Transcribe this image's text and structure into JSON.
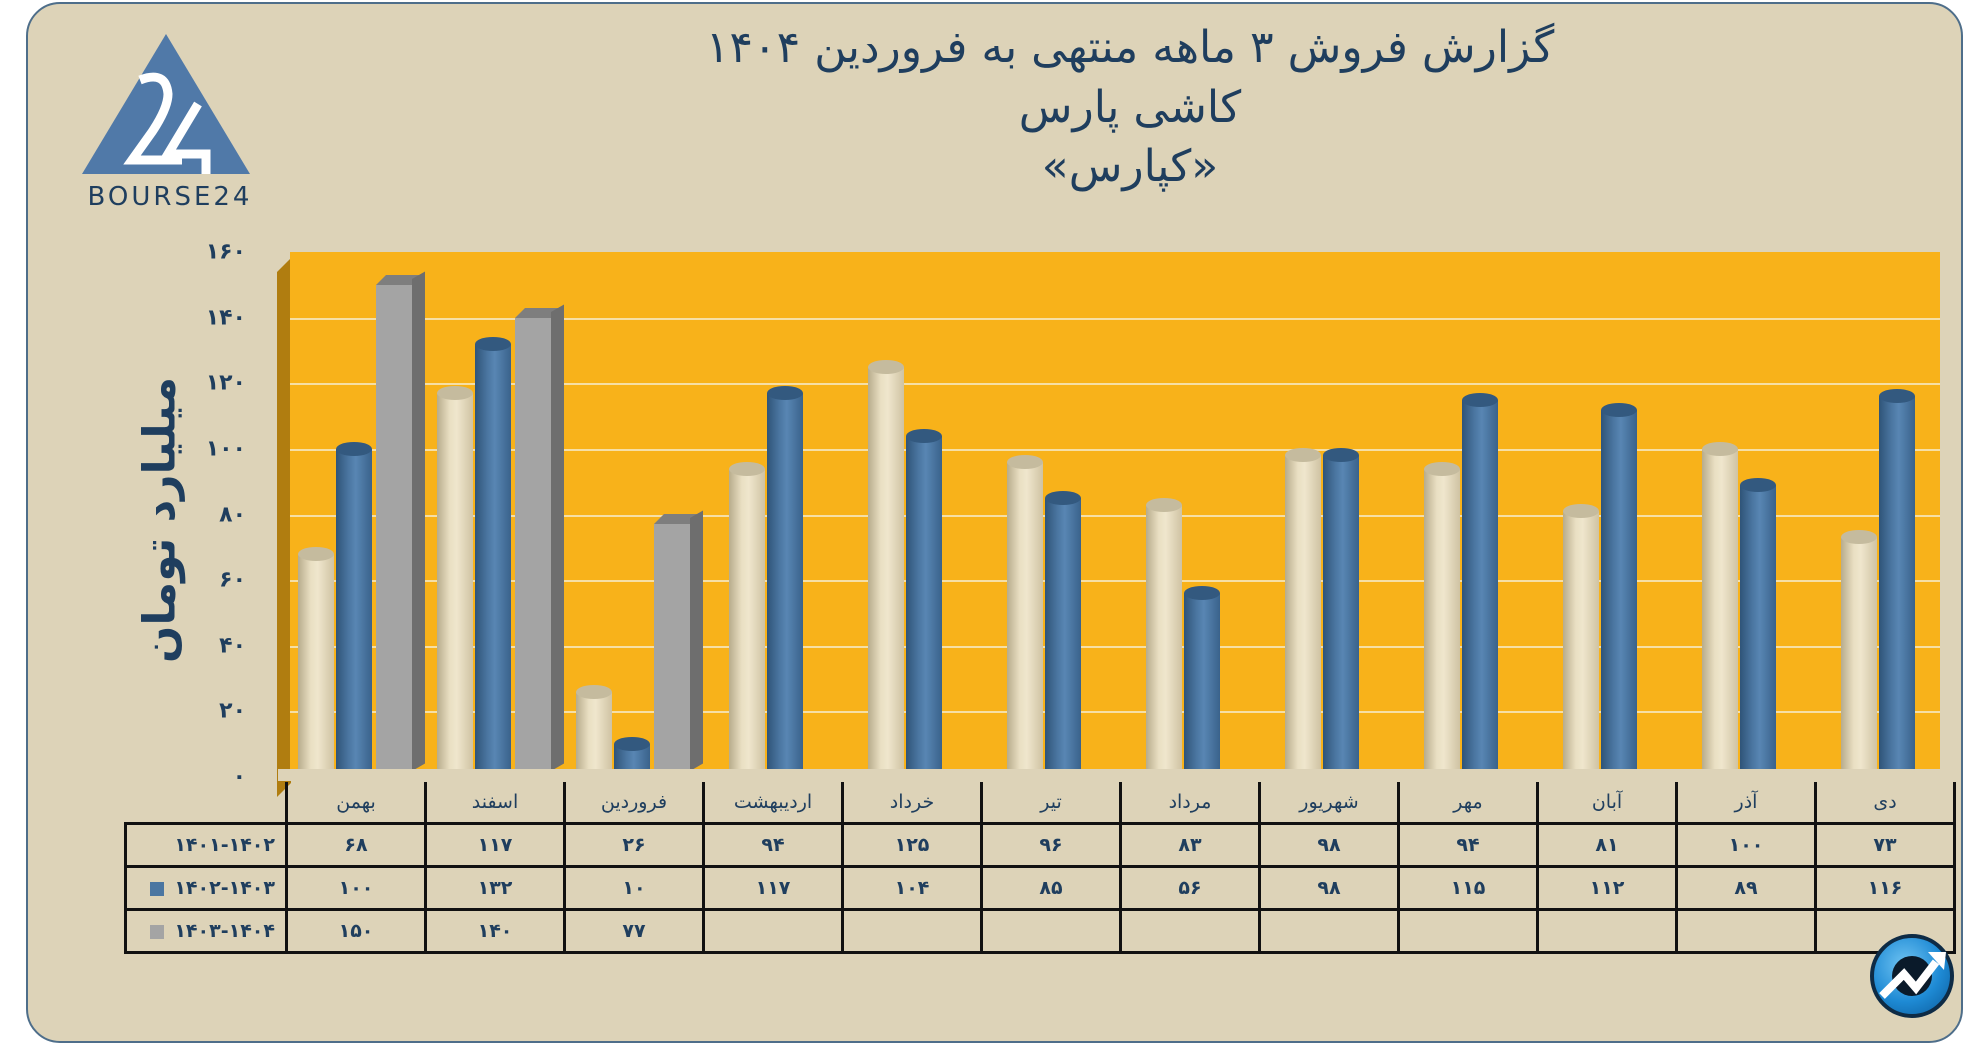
{
  "header": {
    "title_line1": "گزارش  فروش ۳ ماهه منتهی به فروردین ۱۴۰۴",
    "title_line2": "کاشی پارس",
    "title_line3": "«کپارس»"
  },
  "logo": {
    "text": "BOURSE24",
    "mark": "24",
    "icon": "triangle-logo-icon",
    "color": "#5079A8"
  },
  "axis": {
    "ylabel": "میلیارد تومان",
    "ticks": [
      "۰",
      "۲۰",
      "۴۰",
      "۶۰",
      "۸۰",
      "۱۰۰",
      "۱۲۰",
      "۱۴۰",
      "۱۶۰"
    ]
  },
  "table": {
    "months": [
      "بهمن",
      "اسفند",
      "فروردین",
      "اردیبهشت",
      "خرداد",
      "تیر",
      "مرداد",
      "شهریور",
      "مهر",
      "آبان",
      "آذر",
      "دی"
    ],
    "rows": [
      {
        "label": "۱۴۰۱-۱۴۰۲",
        "marker_color": "#E9DFC2",
        "values": [
          "۶۸",
          "۱۱۷",
          "۲۶",
          "۹۴",
          "۱۲۵",
          "۹۶",
          "۸۳",
          "۹۸",
          "۹۴",
          "۸۱",
          "۱۰۰",
          "۷۳"
        ]
      },
      {
        "label": "۱۴۰۲-۱۴۰۳",
        "marker_color": "#4B76A1",
        "values": [
          "۱۰۰",
          "۱۳۲",
          "۱۰",
          "۱۱۷",
          "۱۰۴",
          "۸۵",
          "۵۶",
          "۹۸",
          "۱۱۵",
          "۱۱۲",
          "۸۹",
          "۱۱۶"
        ]
      },
      {
        "label": "۱۴۰۳-۱۴۰۴",
        "marker_color": "#A4A4A4",
        "values": [
          "۱۵۰",
          "۱۴۰",
          "۷۷",
          "",
          "",
          "",
          "",
          "",
          "",
          "",
          "",
          ""
        ]
      }
    ]
  },
  "badge": {
    "icon": "trend-up-arrow-icon"
  },
  "colors": {
    "background": "#DDD3B8",
    "plot": "#F8B21A",
    "text": "#1F3E5E",
    "series_1401_1402": "#E9DFC2",
    "series_1402_1403": "#4B76A1",
    "series_1403_1404": "#A4A4A4"
  },
  "chart_data": {
    "type": "bar",
    "title": "گزارش فروش ۳ ماهه منتهی به فروردین ۱۴۰۴ — کاشی پارس «کپارس»",
    "xlabel": "",
    "ylabel": "میلیارد تومان",
    "ylim": [
      0,
      160
    ],
    "yticks": [
      0,
      20,
      40,
      60,
      80,
      100,
      120,
      140,
      160
    ],
    "grid": true,
    "legend_position": "table-left",
    "categories": [
      "بهمن",
      "اسفند",
      "فروردین",
      "اردیبهشت",
      "خرداد",
      "تیر",
      "مرداد",
      "شهریور",
      "مهر",
      "آبان",
      "آذر",
      "دی"
    ],
    "series": [
      {
        "name": "1401-1402",
        "shape": "cylinder",
        "color": "#E9DFC2",
        "values": [
          68,
          117,
          26,
          94,
          125,
          96,
          83,
          98,
          94,
          81,
          100,
          73
        ]
      },
      {
        "name": "1402-1403",
        "shape": "cylinder",
        "color": "#4B76A1",
        "values": [
          100,
          132,
          10,
          117,
          104,
          85,
          56,
          98,
          115,
          112,
          89,
          116
        ]
      },
      {
        "name": "1403-1404",
        "shape": "box",
        "color": "#A4A4A4",
        "values": [
          150,
          140,
          77,
          null,
          null,
          null,
          null,
          null,
          null,
          null,
          null,
          null
        ]
      }
    ]
  }
}
